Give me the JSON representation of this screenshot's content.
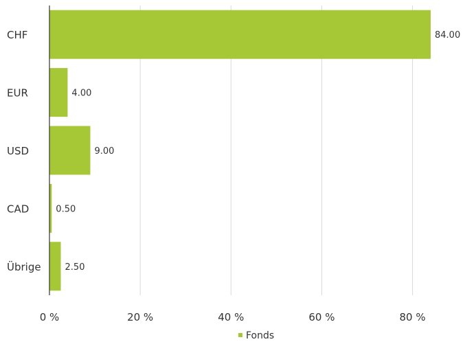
{
  "chart_data": {
    "type": "bar",
    "orientation": "horizontal",
    "categories": [
      "CHF",
      "EUR",
      "USD",
      "CAD",
      "Übrige"
    ],
    "series": [
      {
        "name": "Fonds",
        "values": [
          84.0,
          4.0,
          9.0,
          0.5,
          2.5
        ],
        "value_labels": [
          "84.00",
          "4.00",
          "9.00",
          "0.50",
          "2.50"
        ],
        "color": "#a6c837"
      }
    ],
    "xlim": [
      0,
      84
    ],
    "ticks": [
      0,
      20,
      40,
      60,
      80
    ],
    "tick_labels": [
      "0 %",
      "20 %",
      "40 %",
      "60 %",
      "80 %"
    ],
    "grid": true,
    "legend_position": "bottom-center"
  }
}
